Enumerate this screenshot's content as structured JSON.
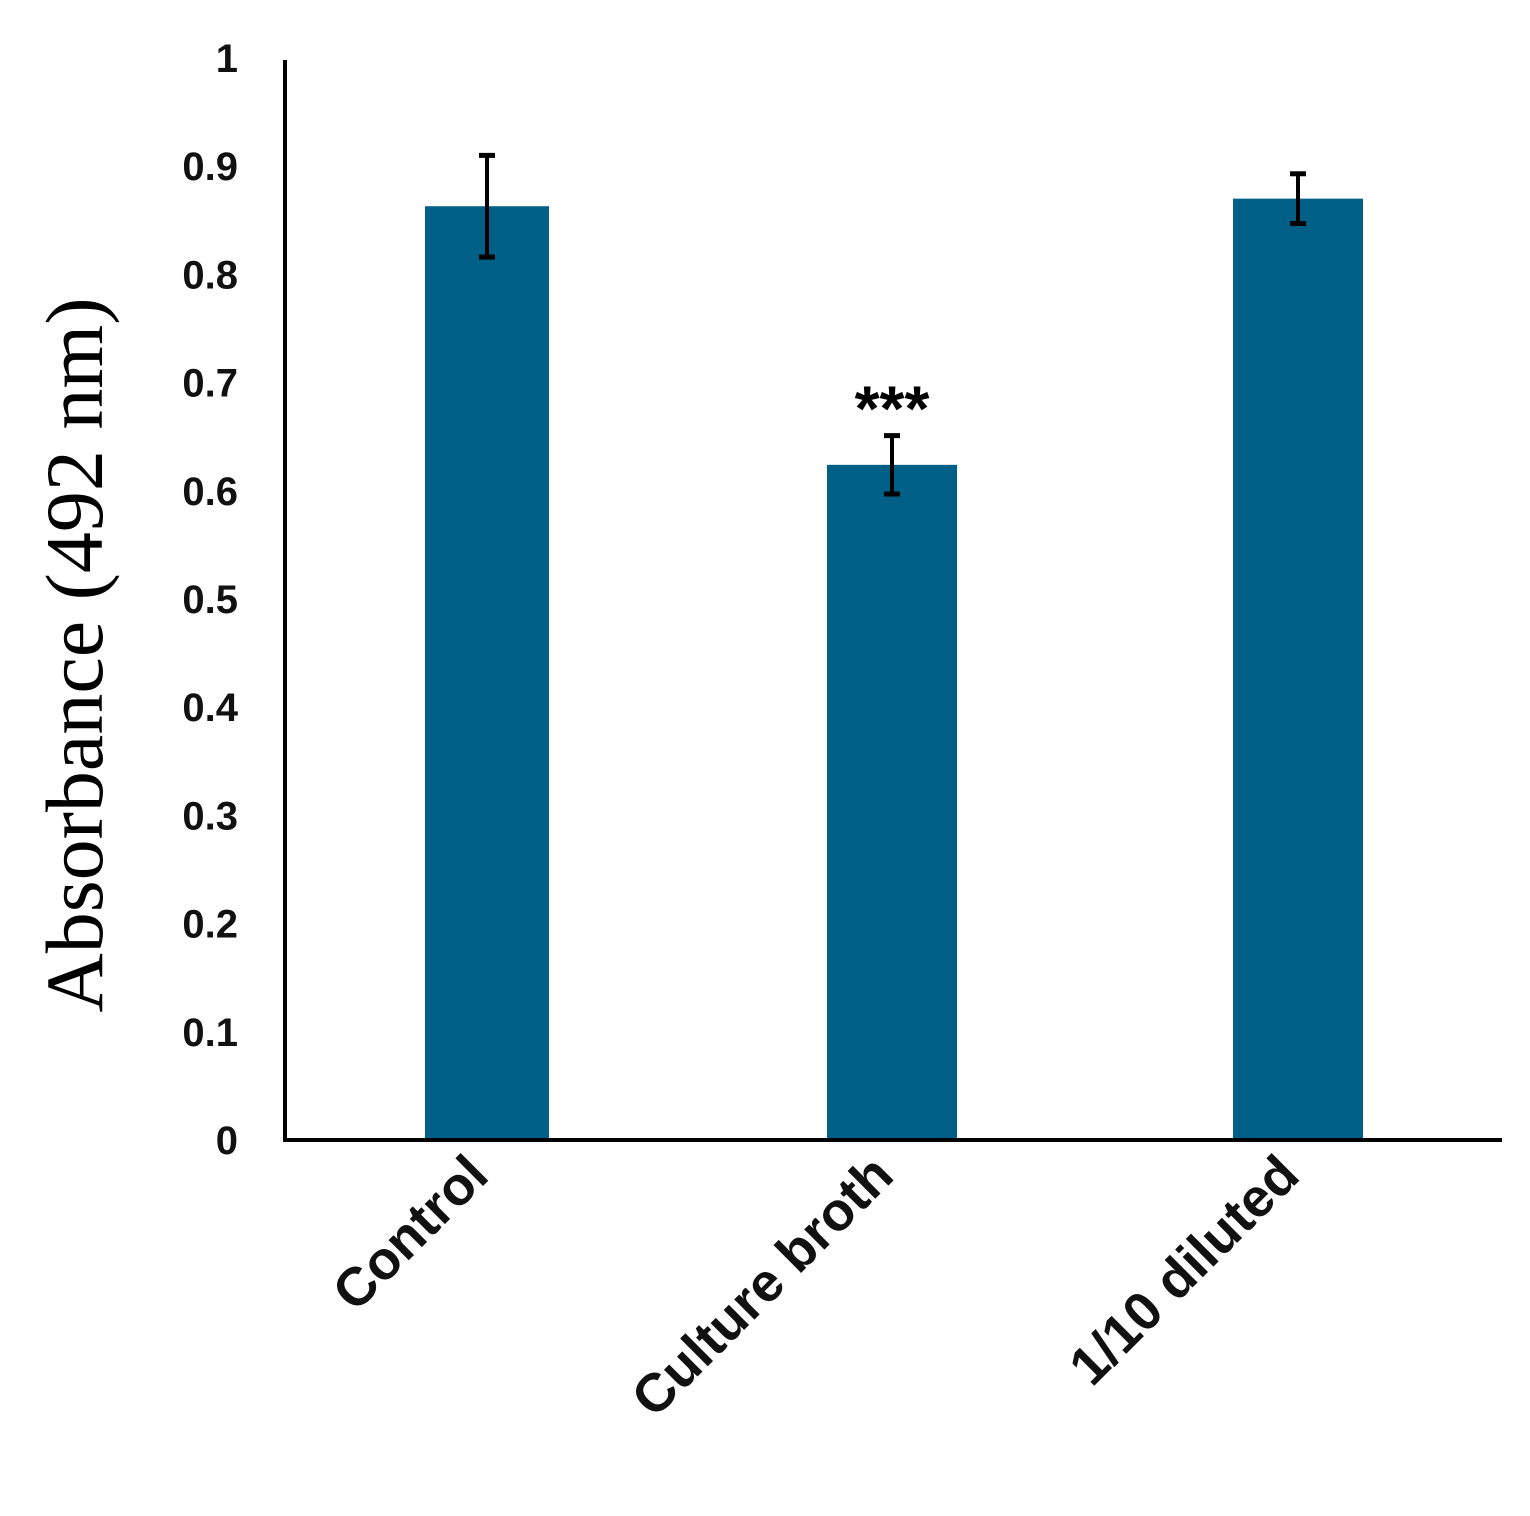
{
  "chart_data": {
    "type": "bar",
    "title": "",
    "xlabel": "",
    "ylabel": "Absorbance (492 nm)",
    "ylim": [
      0,
      1
    ],
    "yticks": [
      0,
      0.1,
      0.2,
      0.3,
      0.4,
      0.5,
      0.6,
      0.7,
      0.8,
      0.9,
      1
    ],
    "ytick_labels": [
      "0",
      "0.1",
      "0.2",
      "0.3",
      "0.4",
      "0.5",
      "0.6",
      "0.7",
      "0.8",
      "0.9",
      "1"
    ],
    "grid": false,
    "legend": "none",
    "categories": [
      "Control",
      "Culture broth",
      "1/10 diluted"
    ],
    "values": [
      0.863,
      0.624,
      0.87
    ],
    "errors": [
      0.047,
      0.027,
      0.023
    ],
    "annotations": [
      "",
      "***",
      ""
    ],
    "bar_color": "#005F86"
  }
}
